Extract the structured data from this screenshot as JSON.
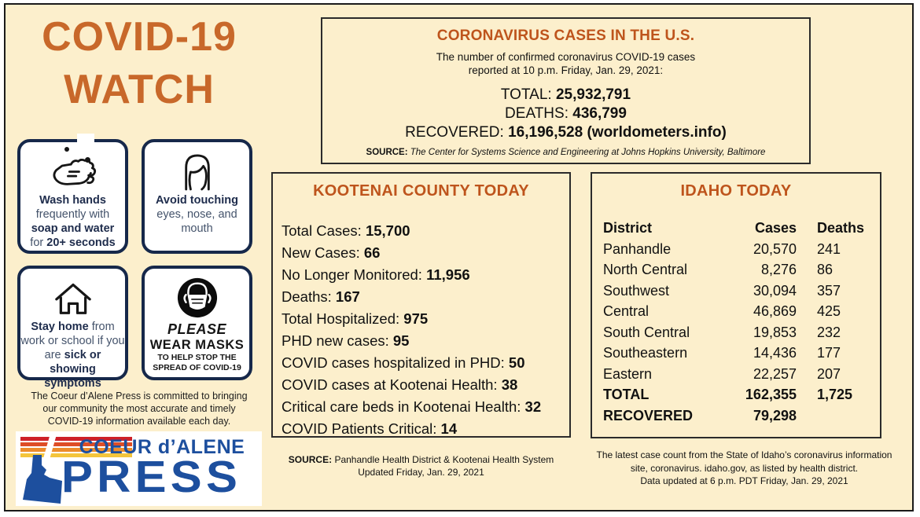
{
  "colors": {
    "accent_orange": "#BE541C",
    "title_orange": "#C8682A",
    "navy": "#16284A",
    "logo_blue": "#1D4F9E",
    "cream_bg": "#FCEFCC",
    "stripes": [
      "#CE2027",
      "#DE4D26",
      "#EC8C2C",
      "#F4C53B"
    ]
  },
  "title": {
    "line1": "COVID-19",
    "line2": "WATCH"
  },
  "us_box": {
    "title": "CORONAVIRUS CASES IN THE U.S.",
    "subtitle_line1": "The number of confirmed coronavirus COVID-19 cases",
    "subtitle_line2": "reported at 10 p.m. Friday, Jan. 29, 2021:",
    "stats": [
      {
        "label": "TOTAL:",
        "value": "25,932,791"
      },
      {
        "label": "DEATHS:",
        "value": "436,799"
      },
      {
        "label": "RECOVERED:",
        "value": "16,196,528 (worldometers.info)"
      }
    ],
    "source_label": "SOURCE:",
    "source_text": "The Center for Systems Science and Engineering at Johns Hopkins University, Baltimore"
  },
  "tips": {
    "wash": {
      "b1": "Wash hands",
      "r1": "frequently with",
      "b2": "soap and water",
      "r2": "for",
      "b3": "20+ seconds"
    },
    "touch": {
      "b1": "Avoid touching",
      "r1": "eyes, nose, and",
      "r2": "mouth"
    },
    "home": {
      "b1": "Stay home",
      "r1": "from",
      "r2": "work or school if you",
      "r3": "are",
      "b2": "sick or showing",
      "b3": "symptoms"
    },
    "mask": {
      "l1": "PLEASE",
      "l2": "WEAR MASKS",
      "l3": "TO HELP STOP THE",
      "l4": "SPREAD OF COVID-19"
    }
  },
  "commitment": {
    "line1": "The Coeur d’Alene Press is committed to bringing",
    "line2": "our community the most accurate and timely",
    "line3": "COVID-19 information available each day."
  },
  "logo": {
    "top": "COEUR d’ALENE",
    "bottom": "PRESS"
  },
  "kootenai": {
    "title": "KOOTENAI COUNTY TODAY",
    "stats": [
      {
        "label": "Total Cases:",
        "value": "15,700"
      },
      {
        "label": "New Cases:",
        "value": "66"
      },
      {
        "label": "No Longer Monitored:",
        "value": "11,956"
      },
      {
        "label": "Deaths:",
        "value": "167"
      },
      {
        "label": "Total Hospitalized:",
        "value": "975"
      },
      {
        "label": "PHD new cases:",
        "value": "95"
      },
      {
        "label": "COVID cases hospitalized in PHD:",
        "value": "50"
      },
      {
        "label": "COVID cases at Kootenai Health:",
        "value": "38"
      },
      {
        "label": "Critical care beds in Kootenai Health:",
        "value": "32"
      },
      {
        "label": "COVID Patients Critical:",
        "value": "14"
      }
    ],
    "source_label": "SOURCE:",
    "source_line1": "Panhandle Health District & Kootenai Health System",
    "source_line2": "Updated Friday, Jan. 29, 2021"
  },
  "idaho": {
    "title": "IDAHO TODAY",
    "columns": [
      "District",
      "Cases",
      "Deaths"
    ],
    "rows": [
      {
        "district": "Panhandle",
        "cases": "20,570",
        "deaths": "241",
        "bold": false
      },
      {
        "district": "North Central",
        "cases": "8,276",
        "deaths": "86",
        "bold": false
      },
      {
        "district": "Southwest",
        "cases": "30,094",
        "deaths": "357",
        "bold": false
      },
      {
        "district": "Central",
        "cases": "46,869",
        "deaths": "425",
        "bold": false
      },
      {
        "district": "South Central",
        "cases": "19,853",
        "deaths": "232",
        "bold": false
      },
      {
        "district": "Southeastern",
        "cases": "14,436",
        "deaths": "177",
        "bold": false
      },
      {
        "district": "Eastern",
        "cases": "22,257",
        "deaths": "207",
        "bold": false
      },
      {
        "district": "TOTAL",
        "cases": "162,355",
        "deaths": "1,725",
        "bold": true
      },
      {
        "district": "RECOVERED",
        "cases": "79,298",
        "deaths": "",
        "bold": true
      }
    ],
    "footer_line1": "The latest case count from the State of Idaho’s coronavirus information",
    "footer_line2": "site, coronavirus. idaho.gov, as listed by health district.",
    "footer_line3": "Data updated at 6 p.m. PDT Friday, Jan. 29, 2021"
  }
}
